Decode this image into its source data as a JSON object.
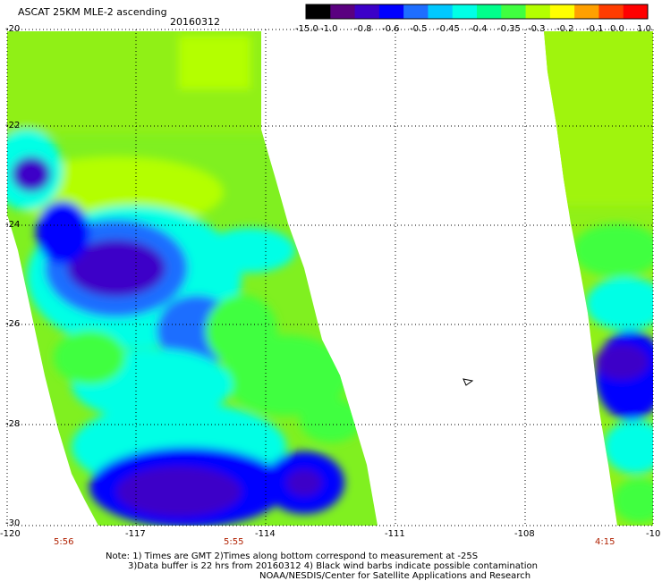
{
  "title": "ASCAT 25KM MLE-2 ascending",
  "date": "20160312",
  "colorbar": {
    "labels": [
      "-15.0",
      "-1.0",
      "-0.8",
      "-0.6",
      "-0.5",
      "-0.45",
      "-0.4",
      "-0.35",
      "-0.3",
      "-0.2",
      "-0.1",
      "0.0",
      "1.0"
    ],
    "colors": [
      "#000000",
      "#5a0080",
      "#3c00c8",
      "#0000ff",
      "#1e6eff",
      "#00c8ff",
      "#00ffe6",
      "#00ff8c",
      "#40ff40",
      "#b4ff00",
      "#ffff00",
      "#ffa000",
      "#ff3c00",
      "#ff0000"
    ]
  },
  "axes": {
    "lat_labels": [
      "-20",
      "-22",
      "-24",
      "-26",
      "-28",
      "-30"
    ],
    "lon_labels": [
      "-120",
      "-117",
      "-114",
      "-111",
      "-108",
      "-10"
    ],
    "lat_range": [
      -30,
      -20
    ],
    "lon_range": [
      -120,
      -105
    ]
  },
  "pass_times": [
    "5:56",
    "5:55",
    "4:15"
  ],
  "notes": {
    "line1": "Note: 1) Times are GMT 2)Times along bottom correspond to measurement at -25S",
    "line2": "3)Data buffer is 22 hrs from 20160312 4) Black wind barbs indicate possible contamination",
    "line3": "NOAA/NESDIS/Center for Satellite Applications and Research"
  }
}
